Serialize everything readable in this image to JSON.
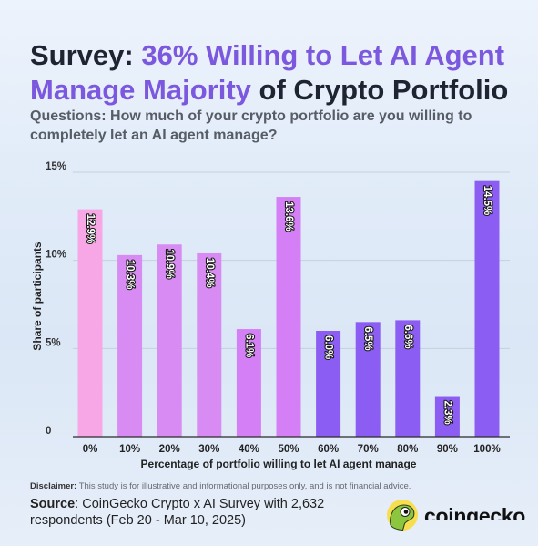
{
  "chart_data": {
    "type": "bar",
    "title_segments": [
      {
        "text": "Survey: ",
        "color": "#1e2432"
      },
      {
        "text": "36% Willing to Let AI Agent",
        "color": "#7b58de"
      },
      {
        "text": "Manage Majority",
        "color": "#7b58de"
      },
      {
        "text": " of Crypto Portfolio",
        "color": "#1e2432"
      }
    ],
    "subtitle": "Questions: How much of your crypto portfolio are you willing to completely let an AI agent manage?",
    "xlabel": "Percentage of portfolio willing to let AI agent manage",
    "ylabel": "Share of participants",
    "categories": [
      "0%",
      "10%",
      "20%",
      "30%",
      "40%",
      "50%",
      "60%",
      "70%",
      "80%",
      "90%",
      "100%"
    ],
    "values": [
      12.9,
      10.3,
      10.9,
      10.4,
      6.1,
      13.6,
      6.0,
      6.5,
      6.6,
      2.3,
      14.5
    ],
    "data_labels": [
      "12.9%",
      "10.3%",
      "10.9%",
      "10.4%",
      "6.1%",
      "13.6%",
      "6.0%",
      "6.5%",
      "6.6%",
      "2.3%",
      "14.5%"
    ],
    "bar_colors": [
      "#f7a7e5",
      "#d88bf2",
      "#d88bf2",
      "#d88bf2",
      "#d47ff5",
      "#d47ff5",
      "#8c5df2",
      "#8c5df2",
      "#8c5df2",
      "#8c5df2",
      "#8c5df2"
    ],
    "ylim": [
      0,
      15
    ],
    "yticks": [
      0,
      5,
      10,
      15
    ],
    "ytick_labels": [
      "0",
      "5%",
      "10%",
      "15%"
    ],
    "grid": true
  },
  "footer": {
    "disclaimer_label": "Disclaimer:",
    "disclaimer_text": " This study is for illustrative and informational purposes only, and is not financial advice.",
    "source_label": "Source",
    "source_text": ": CoinGecko Crypto x AI Survey with 2,632 respondents (Feb 20 - Mar 10, 2025)"
  },
  "logo": {
    "icon": "coingecko-gecko-icon",
    "wordmark": "coingecko"
  }
}
